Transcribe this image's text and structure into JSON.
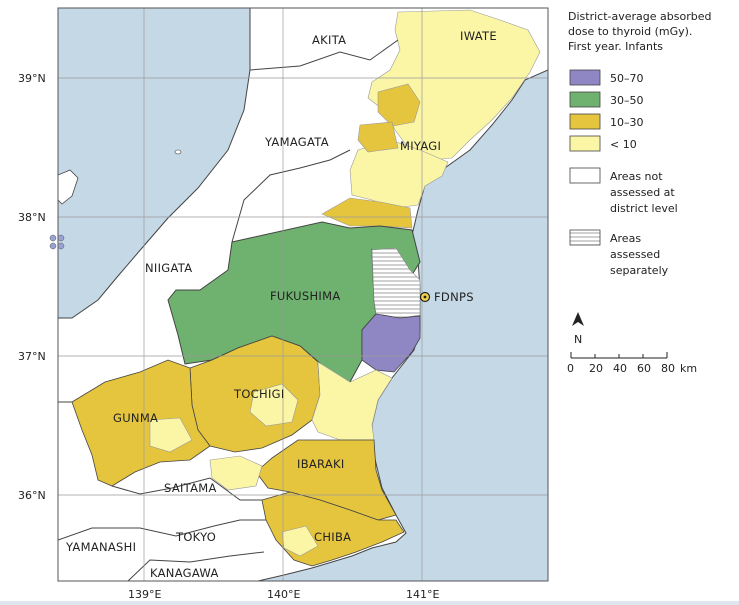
{
  "legend": {
    "title_lines": [
      "District-average absorbed",
      "dose to thyroid (mGy).",
      "First year. Infants"
    ],
    "classes": [
      {
        "label": "50–70",
        "color": "#8f86c4"
      },
      {
        "label": "30–50",
        "color": "#6fb16f"
      },
      {
        "label": "10–30",
        "color": "#e6c53e"
      },
      {
        "label": "< 10",
        "color": "#fbf5a6"
      }
    ],
    "not_assessed_lines": [
      "Areas not",
      "assessed at",
      "district level"
    ],
    "separate_lines": [
      "Areas",
      "assessed",
      "separately"
    ]
  },
  "north_label": "N",
  "scale": {
    "ticks": [
      "0",
      "20",
      "40",
      "60",
      "80"
    ],
    "unit": "km"
  },
  "lat_labels": [
    "39°N",
    "38°N",
    "37°N",
    "36°N"
  ],
  "lon_labels": [
    "139°E",
    "140°E",
    "141°E"
  ],
  "prefectures": {
    "akita": "AKITA",
    "iwate": "IWATE",
    "yamagata": "YAMAGATA",
    "miyagi": "MIYAGI",
    "niigata": "NIIGATA",
    "fukushima": "FUKUSHIMA",
    "tochigi": "TOCHIGI",
    "gunma": "GUNMA",
    "ibaraki": "IBARAKI",
    "saitama": "SAITAMA",
    "yamanashi": "YAMANASHI",
    "tokyo": "TOKYO",
    "chiba": "CHIBA",
    "kanagawa": "KANAGAWA"
  },
  "plant_label": "FDNPS",
  "colors": {
    "sea": "#c5d8e6",
    "land": "#ffffff",
    "grid": "#9a9a9a"
  }
}
